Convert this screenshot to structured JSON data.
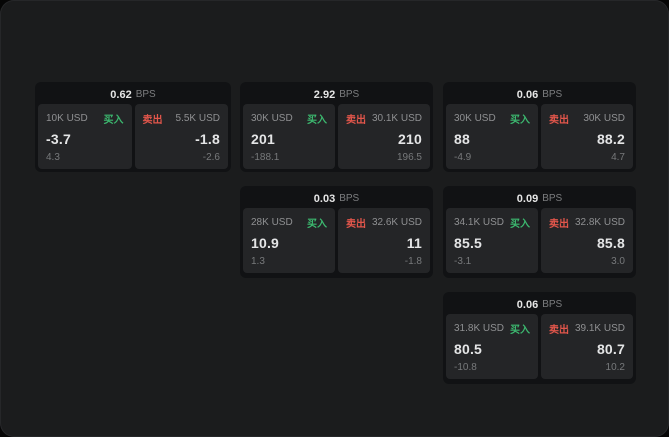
{
  "labels": {
    "bps": "BPS",
    "buy": "买入",
    "sell": "卖出"
  },
  "colors": {
    "buy_green": "#3cb86f",
    "sell_red": "#e2564b",
    "page_bg": "#1b1c1d",
    "panel_bg": "#111214",
    "cell_bg": "#242527"
  },
  "panels": [
    {
      "bps": "0.62",
      "buy_size": "10K USD",
      "buy_price": "-3.7",
      "buy_delta": "4.3",
      "sell_size": "5.5K USD",
      "sell_price": "-1.8",
      "sell_delta": "-2.6"
    },
    {
      "bps": "2.92",
      "buy_size": "30K USD",
      "buy_price": "201",
      "buy_delta": "-188.1",
      "sell_size": "30.1K USD",
      "sell_price": "210",
      "sell_delta": "196.5"
    },
    {
      "bps": "0.06",
      "buy_size": "30K USD",
      "buy_price": "88",
      "buy_delta": "-4.9",
      "sell_size": "30K USD",
      "sell_price": "88.2",
      "sell_delta": "4.7"
    },
    {
      "bps": "0.03",
      "buy_size": "28K USD",
      "buy_price": "10.9",
      "buy_delta": "1.3",
      "sell_size": "32.6K USD",
      "sell_price": "11",
      "sell_delta": "-1.8"
    },
    {
      "bps": "0.09",
      "buy_size": "34.1K USD",
      "buy_price": "85.5",
      "buy_delta": "-3.1",
      "sell_size": "32.8K USD",
      "sell_price": "85.8",
      "sell_delta": "3.0"
    },
    {
      "bps": "0.06",
      "buy_size": "31.8K USD",
      "buy_price": "80.5",
      "buy_delta": "-10.8",
      "sell_size": "39.1K USD",
      "sell_price": "80.7",
      "sell_delta": "10.2"
    }
  ]
}
